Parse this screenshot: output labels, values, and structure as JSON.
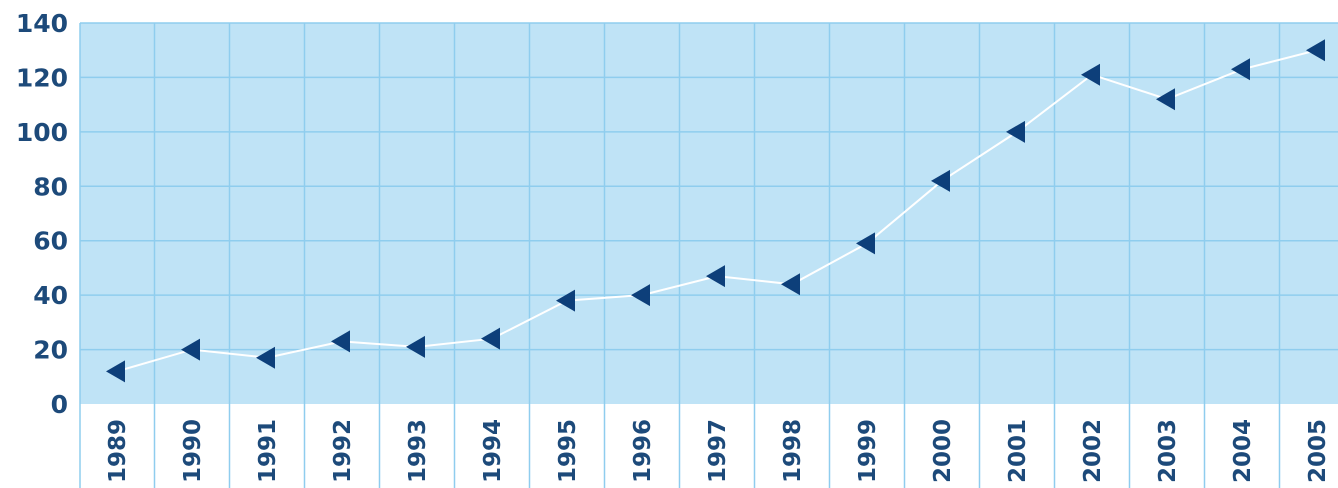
{
  "chart_data": {
    "type": "line",
    "x": [
      "1989",
      "1990",
      "1991",
      "1992",
      "1993",
      "1994",
      "1995",
      "1996",
      "1997",
      "1998",
      "1999",
      "2000",
      "2001",
      "2002",
      "2003",
      "2004",
      "2005"
    ],
    "series": [
      {
        "values": [
          12,
          20,
          17,
          23,
          21,
          24,
          38,
          40,
          47,
          44,
          59,
          82,
          100,
          121,
          112,
          123,
          130
        ]
      }
    ],
    "ylim": [
      0,
      140
    ],
    "yticks": [
      0,
      20,
      40,
      60,
      80,
      100,
      120,
      140
    ],
    "grid": true,
    "colors": {
      "plot_background": "#bfe3f6",
      "grid": "#8fcdee",
      "line": "#ffffff",
      "marker": "#0d3f7a",
      "tick_text": "#1d4a7a"
    },
    "marker": "left-pointing-triangle"
  }
}
